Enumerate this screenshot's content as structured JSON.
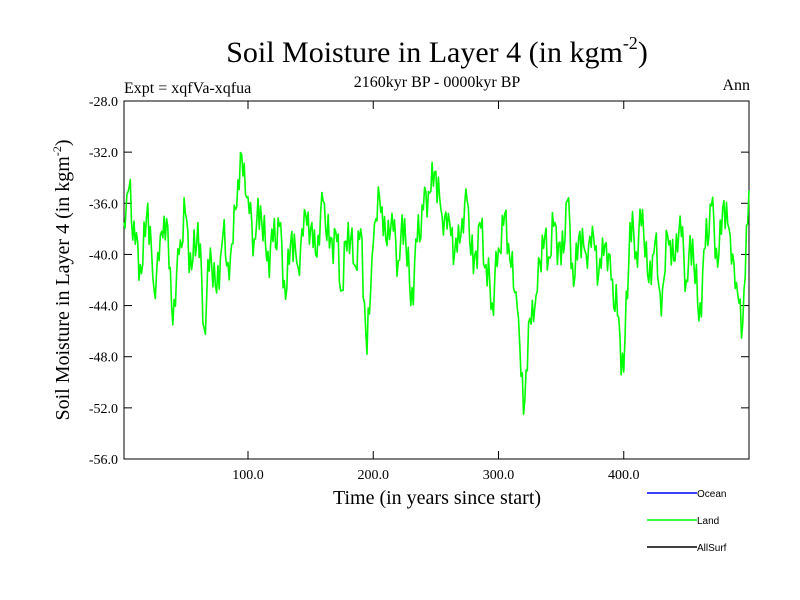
{
  "chart_data": {
    "type": "line",
    "title": "Soil Moisture in Layer 4 (in kgm",
    "title_sup": "-2",
    "title_close": ")",
    "subtitle": "2160kyr BP - 0000kyr BP",
    "left_label": "Expt = xqfVa-xqfua",
    "right_label": "Ann",
    "xlabel": "Time (in years since start)",
    "ylabel": "Soil Moisture in Layer 4 (in kgm",
    "ylabel_sup": "-2",
    "ylabel_close": ")",
    "xlim": [
      1,
      500
    ],
    "ylim": [
      -56.0,
      -28.0
    ],
    "x_ticks": [
      100,
      200,
      300,
      400
    ],
    "x_tick_labels": [
      "100.0",
      "200.0",
      "300.0",
      "400.0"
    ],
    "y_ticks": [
      -28,
      -32,
      -36,
      -40,
      -44,
      -48,
      -52,
      -56
    ],
    "y_tick_labels": [
      "-28.0",
      "-32.0",
      "-36.0",
      "-40.0",
      "-44.0",
      "-48.0",
      "-52.0",
      "-56.0"
    ],
    "legend": [
      {
        "name": "Ocean",
        "color": "#0000ff"
      },
      {
        "name": "Land",
        "color": "#00ff00"
      },
      {
        "name": "AllSurf",
        "color": "#000000"
      }
    ],
    "series": [
      {
        "name": "Land",
        "color": "#00ff00",
        "x": [
          1,
          5,
          10,
          15,
          20,
          25,
          30,
          35,
          40,
          45,
          50,
          55,
          60,
          65,
          70,
          75,
          80,
          85,
          90,
          95,
          100,
          105,
          110,
          115,
          120,
          125,
          130,
          135,
          140,
          145,
          150,
          155,
          160,
          165,
          170,
          175,
          180,
          185,
          190,
          195,
          200,
          205,
          210,
          215,
          220,
          225,
          230,
          235,
          240,
          245,
          250,
          255,
          260,
          265,
          270,
          275,
          280,
          285,
          290,
          295,
          300,
          305,
          310,
          315,
          320,
          325,
          330,
          335,
          340,
          345,
          350,
          355,
          360,
          365,
          370,
          375,
          380,
          385,
          390,
          395,
          400,
          405,
          410,
          415,
          420,
          425,
          430,
          435,
          440,
          445,
          450,
          455,
          460,
          465,
          470,
          475,
          480,
          485,
          490,
          495,
          500
        ],
        "values": [
          -37.5,
          -34.8,
          -39.2,
          -41.5,
          -36.0,
          -42.8,
          -38.5,
          -37.2,
          -45.5,
          -40.0,
          -36.8,
          -41.2,
          -37.5,
          -45.8,
          -39.5,
          -43.0,
          -38.5,
          -42.0,
          -36.5,
          -32.2,
          -35.5,
          -38.8,
          -36.2,
          -40.5,
          -39.0,
          -37.8,
          -43.5,
          -38.2,
          -41.0,
          -36.5,
          -38.0,
          -40.2,
          -35.8,
          -39.5,
          -38.2,
          -42.8,
          -37.5,
          -40.8,
          -38.0,
          -47.8,
          -39.2,
          -35.5,
          -38.8,
          -36.8,
          -40.5,
          -37.2,
          -44.0,
          -39.0,
          -36.5,
          -35.2,
          -33.5,
          -37.0,
          -36.8,
          -39.8,
          -38.5,
          -35.8,
          -41.5,
          -37.5,
          -40.8,
          -43.8,
          -39.5,
          -36.8,
          -41.0,
          -44.2,
          -52.5,
          -45.0,
          -43.2,
          -38.5,
          -40.2,
          -37.5,
          -40.8,
          -35.8,
          -42.5,
          -38.2,
          -40.0,
          -37.8,
          -41.5,
          -39.2,
          -42.0,
          -44.8,
          -49.2,
          -37.5,
          -39.8,
          -36.5,
          -42.2,
          -39.0,
          -44.8,
          -38.5,
          -40.5,
          -37.0,
          -42.0,
          -38.8,
          -45.2,
          -39.5,
          -36.2,
          -41.0,
          -35.8,
          -38.5,
          -42.2,
          -45.5,
          -35.0
        ]
      }
    ]
  }
}
